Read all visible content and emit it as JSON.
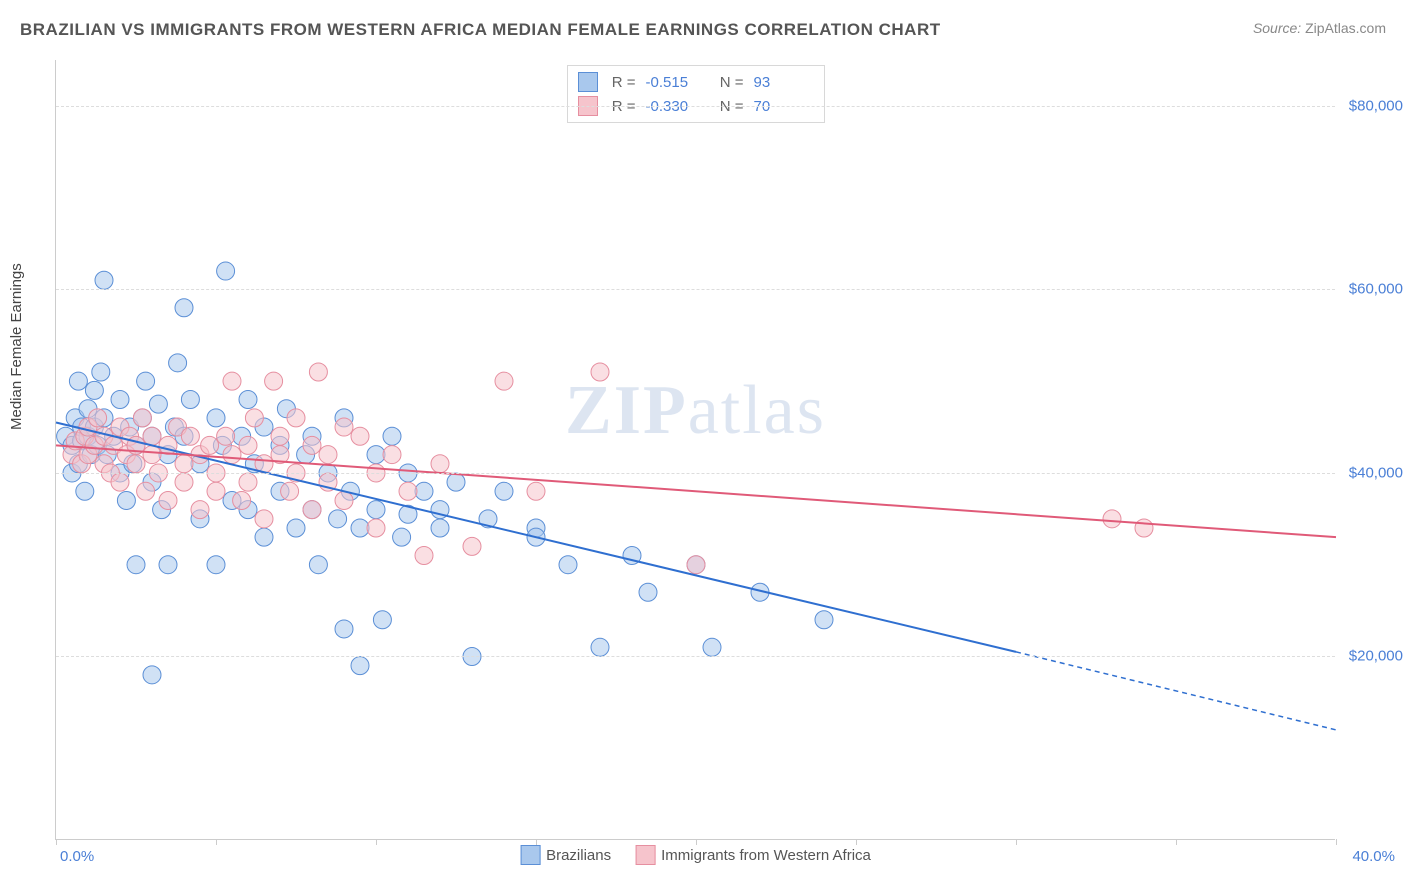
{
  "title": "BRAZILIAN VS IMMIGRANTS FROM WESTERN AFRICA MEDIAN FEMALE EARNINGS CORRELATION CHART",
  "source_label": "Source:",
  "source_value": "ZipAtlas.com",
  "ylabel": "Median Female Earnings",
  "watermark_bold": "ZIP",
  "watermark_rest": "atlas",
  "chart": {
    "type": "scatter",
    "xlim": [
      0,
      40
    ],
    "ylim": [
      0,
      85000
    ],
    "background_color": "#ffffff",
    "grid_color": "#dddddd",
    "axis_color": "#cccccc",
    "tick_label_color": "#4a7fd6",
    "label_fontsize": 15,
    "title_fontsize": 17,
    "marker_radius": 9,
    "marker_opacity": 0.55,
    "y_gridlines": [
      20000,
      40000,
      60000,
      80000
    ],
    "y_tick_labels": [
      "$20,000",
      "$40,000",
      "$60,000",
      "$80,000"
    ],
    "x_ticks": [
      0,
      5,
      10,
      15,
      20,
      25,
      30,
      35,
      40
    ],
    "x_min_label": "0.0%",
    "x_max_label": "40.0%"
  },
  "series": [
    {
      "name": "Brazilians",
      "fill_color": "#a9c8ed",
      "stroke_color": "#5b8fd6",
      "line_color": "#2f6fd0",
      "R": "-0.515",
      "N": "93",
      "regression": {
        "x1": 0,
        "y1": 45500,
        "x2": 30,
        "y2": 20500,
        "dash_x2": 40,
        "dash_y2": 12000
      },
      "points": [
        [
          0.3,
          44000
        ],
        [
          0.5,
          43000
        ],
        [
          0.5,
          40000
        ],
        [
          0.6,
          46000
        ],
        [
          0.7,
          50000
        ],
        [
          0.7,
          41000
        ],
        [
          0.8,
          43500
        ],
        [
          0.8,
          45000
        ],
        [
          0.9,
          38000
        ],
        [
          1.0,
          44000
        ],
        [
          1.0,
          47000
        ],
        [
          1.1,
          42000
        ],
        [
          1.2,
          45000
        ],
        [
          1.2,
          49000
        ],
        [
          1.3,
          43000
        ],
        [
          1.4,
          51000
        ],
        [
          1.5,
          46000
        ],
        [
          1.5,
          61000
        ],
        [
          1.6,
          42000
        ],
        [
          1.8,
          44000
        ],
        [
          2.0,
          48000
        ],
        [
          2.0,
          40000
        ],
        [
          2.2,
          37000
        ],
        [
          2.3,
          45000
        ],
        [
          2.4,
          41000
        ],
        [
          2.5,
          30000
        ],
        [
          2.5,
          43000
        ],
        [
          2.7,
          46000
        ],
        [
          2.8,
          50000
        ],
        [
          3.0,
          18000
        ],
        [
          3.0,
          44000
        ],
        [
          3.0,
          39000
        ],
        [
          3.2,
          47500
        ],
        [
          3.3,
          36000
        ],
        [
          3.5,
          42000
        ],
        [
          3.5,
          30000
        ],
        [
          3.7,
          45000
        ],
        [
          3.8,
          52000
        ],
        [
          4.0,
          44000
        ],
        [
          4.0,
          58000
        ],
        [
          4.2,
          48000
        ],
        [
          4.5,
          41000
        ],
        [
          4.5,
          35000
        ],
        [
          5.0,
          46000
        ],
        [
          5.0,
          30000
        ],
        [
          5.2,
          43000
        ],
        [
          5.3,
          62000
        ],
        [
          5.5,
          37000
        ],
        [
          5.8,
          44000
        ],
        [
          6.0,
          48000
        ],
        [
          6.0,
          36000
        ],
        [
          6.2,
          41000
        ],
        [
          6.5,
          45000
        ],
        [
          6.5,
          33000
        ],
        [
          7.0,
          43000
        ],
        [
          7.0,
          38000
        ],
        [
          7.2,
          47000
        ],
        [
          7.5,
          34000
        ],
        [
          7.8,
          42000
        ],
        [
          8.0,
          36000
        ],
        [
          8.0,
          44000
        ],
        [
          8.2,
          30000
        ],
        [
          8.5,
          40000
        ],
        [
          8.8,
          35000
        ],
        [
          9.0,
          46000
        ],
        [
          9.0,
          23000
        ],
        [
          9.2,
          38000
        ],
        [
          9.5,
          34000
        ],
        [
          9.5,
          19000
        ],
        [
          10.0,
          42000
        ],
        [
          10.0,
          36000
        ],
        [
          10.2,
          24000
        ],
        [
          10.5,
          44000
        ],
        [
          10.8,
          33000
        ],
        [
          11.0,
          40000
        ],
        [
          11.0,
          35500
        ],
        [
          11.5,
          38000
        ],
        [
          12.0,
          36000
        ],
        [
          12.0,
          34000
        ],
        [
          12.5,
          39000
        ],
        [
          13.0,
          20000
        ],
        [
          13.5,
          35000
        ],
        [
          14.0,
          38000
        ],
        [
          15.0,
          34000
        ],
        [
          15.0,
          33000
        ],
        [
          16.0,
          30000
        ],
        [
          17.0,
          21000
        ],
        [
          18.0,
          31000
        ],
        [
          18.5,
          27000
        ],
        [
          20.0,
          30000
        ],
        [
          20.5,
          21000
        ],
        [
          22.0,
          27000
        ],
        [
          24.0,
          24000
        ]
      ]
    },
    {
      "name": "Immigrants from Western Africa",
      "fill_color": "#f6c4cc",
      "stroke_color": "#e68fa0",
      "line_color": "#e05a78",
      "R": "-0.330",
      "N": "70",
      "regression": {
        "x1": 0,
        "y1": 43000,
        "x2": 40,
        "y2": 33000
      },
      "points": [
        [
          0.5,
          42000
        ],
        [
          0.6,
          43500
        ],
        [
          0.8,
          41000
        ],
        [
          0.9,
          44000
        ],
        [
          1.0,
          45000
        ],
        [
          1.0,
          42000
        ],
        [
          1.2,
          43000
        ],
        [
          1.3,
          46000
        ],
        [
          1.5,
          41000
        ],
        [
          1.5,
          44000
        ],
        [
          1.7,
          40000
        ],
        [
          1.8,
          43000
        ],
        [
          2.0,
          45000
        ],
        [
          2.0,
          39000
        ],
        [
          2.2,
          42000
        ],
        [
          2.3,
          44000
        ],
        [
          2.5,
          41000
        ],
        [
          2.5,
          43000
        ],
        [
          2.7,
          46000
        ],
        [
          2.8,
          38000
        ],
        [
          3.0,
          42000
        ],
        [
          3.0,
          44000
        ],
        [
          3.2,
          40000
        ],
        [
          3.5,
          43000
        ],
        [
          3.5,
          37000
        ],
        [
          3.8,
          45000
        ],
        [
          4.0,
          41000
        ],
        [
          4.0,
          39000
        ],
        [
          4.2,
          44000
        ],
        [
          4.5,
          42000
        ],
        [
          4.5,
          36000
        ],
        [
          4.8,
          43000
        ],
        [
          5.0,
          40000
        ],
        [
          5.0,
          38000
        ],
        [
          5.3,
          44000
        ],
        [
          5.5,
          42000
        ],
        [
          5.5,
          50000
        ],
        [
          5.8,
          37000
        ],
        [
          6.0,
          43000
        ],
        [
          6.0,
          39000
        ],
        [
          6.2,
          46000
        ],
        [
          6.5,
          41000
        ],
        [
          6.5,
          35000
        ],
        [
          6.8,
          50000
        ],
        [
          7.0,
          42000
        ],
        [
          7.0,
          44000
        ],
        [
          7.3,
          38000
        ],
        [
          7.5,
          46000
        ],
        [
          7.5,
          40000
        ],
        [
          8.0,
          43000
        ],
        [
          8.0,
          36000
        ],
        [
          8.2,
          51000
        ],
        [
          8.5,
          39000
        ],
        [
          8.5,
          42000
        ],
        [
          9.0,
          45000
        ],
        [
          9.0,
          37000
        ],
        [
          9.5,
          44000
        ],
        [
          10.0,
          40000
        ],
        [
          10.0,
          34000
        ],
        [
          10.5,
          42000
        ],
        [
          11.0,
          38000
        ],
        [
          11.5,
          31000
        ],
        [
          12.0,
          41000
        ],
        [
          13.0,
          32000
        ],
        [
          14.0,
          50000
        ],
        [
          15.0,
          38000
        ],
        [
          17.0,
          51000
        ],
        [
          20.0,
          30000
        ],
        [
          33.0,
          35000
        ],
        [
          34.0,
          34000
        ]
      ]
    }
  ],
  "legend": {
    "R_label": "R =",
    "N_label": "N ="
  }
}
